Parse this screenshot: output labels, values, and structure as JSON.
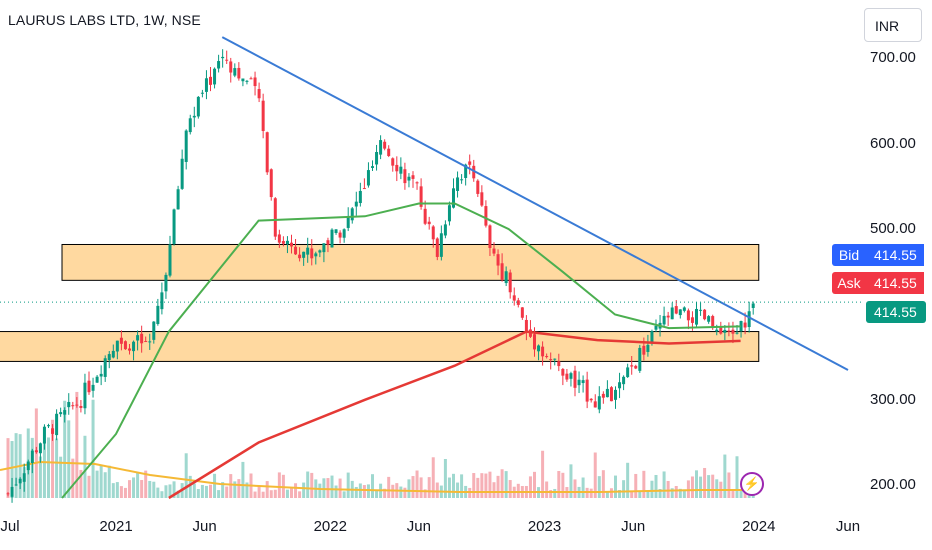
{
  "header": {
    "title": "LAURUS LABS LTD, 1W, NSE",
    "currency": "INR"
  },
  "quote": {
    "bid_label": "Bid",
    "bid": "414.55",
    "ask_label": "Ask",
    "ask": "414.55",
    "last": "414.55"
  },
  "icons": {
    "event": "lightning-icon"
  },
  "colors": {
    "up": "#089981",
    "down": "#f23645",
    "trendline": "#3a7bd5",
    "zone_fill": "#ffd9a0",
    "ma_short": "#4caf50",
    "ma_long": "#e53935",
    "volume_ma": "#f5b935"
  },
  "chart_data": {
    "type": "candlestick",
    "title": "LAURUS LABS LTD, 1W, NSE",
    "ylabel": "INR",
    "ylim": [
      185,
      745
    ],
    "y_ticks": [
      "700.00",
      "600.00",
      "500.00",
      "300.00",
      "200.00"
    ],
    "x_ticks": [
      {
        "label": "Jul",
        "date": "2020-07"
      },
      {
        "label": "2021",
        "date": "2021-01"
      },
      {
        "label": "Jun",
        "date": "2021-06"
      },
      {
        "label": "2022",
        "date": "2022-01"
      },
      {
        "label": "Jun",
        "date": "2022-06"
      },
      {
        "label": "2023",
        "date": "2023-01"
      },
      {
        "label": "Jun",
        "date": "2023-06"
      },
      {
        "label": "2024",
        "date": "2024-01"
      },
      {
        "label": "Jun",
        "date": "2024-06"
      }
    ],
    "close_path": [
      [
        "2020-07",
        190
      ],
      [
        "2020-09",
        260
      ],
      [
        "2020-11",
        300
      ],
      [
        "2021-01",
        370
      ],
      [
        "2021-03",
        365
      ],
      [
        "2021-04",
        470
      ],
      [
        "2021-05",
        620
      ],
      [
        "2021-07",
        705
      ],
      [
        "2021-09",
        655
      ],
      [
        "2021-10",
        490
      ],
      [
        "2021-12",
        470
      ],
      [
        "2022-02",
        510
      ],
      [
        "2022-04",
        600
      ],
      [
        "2022-06",
        540
      ],
      [
        "2022-07",
        470
      ],
      [
        "2022-08",
        560
      ],
      [
        "2022-09",
        575
      ],
      [
        "2022-10",
        470
      ],
      [
        "2022-11",
        440
      ],
      [
        "2022-12",
        380
      ],
      [
        "2023-02",
        330
      ],
      [
        "2023-04",
        300
      ],
      [
        "2023-05",
        305
      ],
      [
        "2023-06",
        340
      ],
      [
        "2023-08",
        400
      ],
      [
        "2023-10",
        395
      ],
      [
        "2023-11",
        370
      ],
      [
        "2023-12",
        385
      ],
      [
        "2023-12-29",
        414.55
      ]
    ],
    "trendline": {
      "from": [
        "2021-07",
        725
      ],
      "to": [
        "2024-06",
        335
      ]
    },
    "zones": [
      {
        "low": 440,
        "high": 482,
        "from": "2020-10",
        "to": "2024-01"
      },
      {
        "low": 345,
        "high": 380,
        "from": "2020-06",
        "to": "2024-01"
      }
    ],
    "moving_averages": [
      {
        "points": [
          [
            "2020-10",
            185
          ],
          [
            "2021-01",
            260
          ],
          [
            "2021-04",
            380
          ],
          [
            "2021-09",
            510
          ],
          [
            "2022-03",
            515
          ],
          [
            "2022-06",
            530
          ],
          [
            "2022-08",
            530
          ],
          [
            "2022-11",
            500
          ],
          [
            "2023-02",
            450
          ],
          [
            "2023-05",
            400
          ],
          [
            "2023-08",
            384
          ],
          [
            "2023-12",
            386
          ]
        ]
      },
      {
        "points": [
          [
            "2021-04",
            185
          ],
          [
            "2021-09",
            250
          ],
          [
            "2022-03",
            300
          ],
          [
            "2022-08",
            340
          ],
          [
            "2022-12",
            380
          ],
          [
            "2023-04",
            370
          ],
          [
            "2023-08",
            366
          ],
          [
            "2023-12",
            369
          ]
        ]
      }
    ],
    "last_price": "414.55"
  }
}
